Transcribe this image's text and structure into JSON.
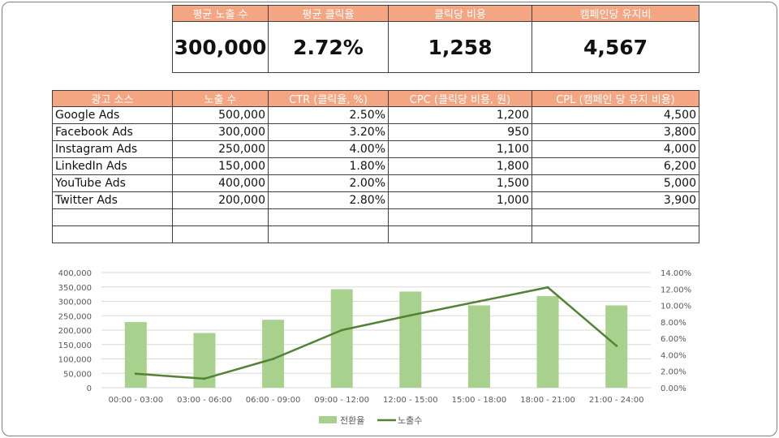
{
  "kpi": {
    "headers": [
      "평균 노출 수",
      "평균 클릭율",
      "클릭당 비용",
      "캠페인당 유지비"
    ],
    "values": [
      "300,000",
      "2.72%",
      "1,258",
      "4,567"
    ]
  },
  "table": {
    "headers": [
      "광고 소스",
      "노출 수",
      "CTR (클릭율, %)",
      "CPC (클릭당 비용, 원)",
      "CPL (캠페인 당 유지 비용)"
    ],
    "rows": [
      [
        "Google Ads",
        "500,000",
        "2.50%",
        "1,200",
        "4,500"
      ],
      [
        "Facebook Ads",
        "300,000",
        "3.20%",
        "950",
        "3,800"
      ],
      [
        "Instagram Ads",
        "250,000",
        "4.00%",
        "1,100",
        "4,000"
      ],
      [
        "LinkedIn Ads",
        "150,000",
        "1.80%",
        "1,800",
        "6,200"
      ],
      [
        "YouTube Ads",
        "400,000",
        "2.00%",
        "1,500",
        "5,000"
      ],
      [
        "Twitter Ads",
        "200,000",
        "2.80%",
        "1,000",
        "3,900"
      ],
      [
        "",
        "",
        "",
        "",
        ""
      ],
      [
        "",
        "",
        "",
        "",
        ""
      ]
    ]
  },
  "colors": {
    "header_fill": "#f4a582",
    "bar": "#a9d18e",
    "line": "#548235"
  },
  "chart_data": {
    "type": "bar+line",
    "categories": [
      "00:00 - 03:00",
      "03:00 - 06:00",
      "06:00 - 09:00",
      "09:00 - 12:00",
      "12:00 - 15:00",
      "15:00 - 18:00",
      "18:00 - 21:00",
      "21:00 - 24:00"
    ],
    "series": [
      {
        "name": "전환율",
        "type": "bar",
        "axis": "left",
        "values": [
          228000,
          190000,
          236000,
          342000,
          334000,
          286000,
          318000,
          286000
        ]
      },
      {
        "name": "노출수",
        "type": "line",
        "axis": "right",
        "values": [
          0.017,
          0.011,
          0.035,
          0.07,
          0.088,
          0.105,
          0.122,
          0.051
        ]
      }
    ],
    "y_left": {
      "min": 0,
      "max": 400000,
      "step": 50000,
      "ticks": [
        "0",
        "50,000",
        "100,000",
        "150,000",
        "200,000",
        "250,000",
        "300,000",
        "350,000",
        "400,000"
      ]
    },
    "y_right": {
      "min": 0,
      "max": 0.14,
      "step": 0.02,
      "ticks": [
        "0.00%",
        "2.00%",
        "4.00%",
        "6.00%",
        "8.00%",
        "10.00%",
        "12.00%",
        "14.00%"
      ]
    },
    "grid": true,
    "legend": "bottom",
    "title": "",
    "xlabel": "",
    "ylabel": ""
  }
}
